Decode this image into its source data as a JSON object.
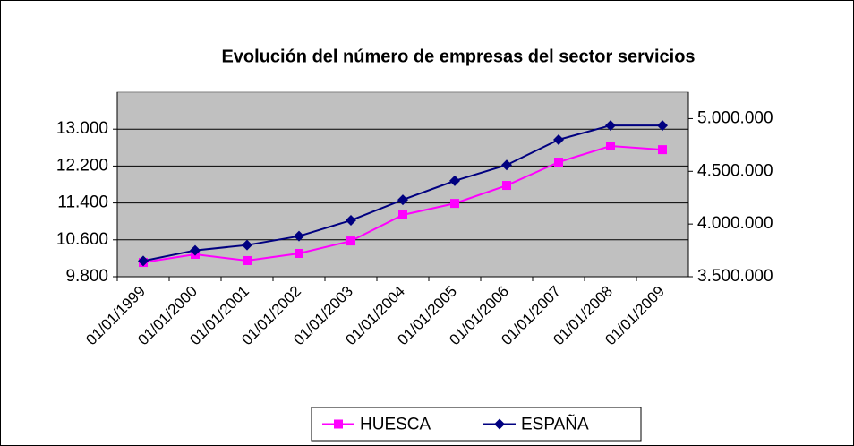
{
  "chart_data": {
    "type": "line",
    "title": "Evolución del número de empresas del sector servicios",
    "categories": [
      "01/01/1999",
      "01/01/2000",
      "01/01/2001",
      "01/01/2002",
      "01/01/2003",
      "01/01/2004",
      "01/01/2005",
      "01/01/2006",
      "01/01/2007",
      "01/01/2008",
      "01/01/2009"
    ],
    "series": [
      {
        "name": "HUESCA",
        "color": "#ff00ff",
        "marker": "square",
        "values": [
          10110,
          10285,
          10150,
          10305,
          10575,
          11140,
          11390,
          11780,
          12285,
          12635,
          12555
        ]
      },
      {
        "name": "ESPAÑA",
        "color": "#000080",
        "marker": "diamond",
        "axis": "y2",
        "values": [
          3650000,
          3750000,
          3800000,
          3885000,
          4035000,
          4230000,
          4410000,
          4560000,
          4800000,
          4935000,
          4935000
        ]
      }
    ],
    "ylim": [
      9800,
      13800
    ],
    "yticks": [
      {
        "value": 9800,
        "label": "9.800"
      },
      {
        "value": 10600,
        "label": "10.600"
      },
      {
        "value": 11400,
        "label": "11.400"
      },
      {
        "value": 12200,
        "label": "12.200"
      },
      {
        "value": 13000,
        "label": "13.000"
      }
    ],
    "y2lim": [
      3500000,
      5250000
    ],
    "y2ticks": [
      {
        "value": 3500000,
        "label": "3.500.000"
      },
      {
        "value": 4000000,
        "label": "4.000.000"
      },
      {
        "value": 4500000,
        "label": "4.500.000"
      },
      {
        "value": 5000000,
        "label": "5.000.000"
      }
    ],
    "grid": true,
    "legend": "bottom",
    "plot_background": "#c0c0c0"
  }
}
